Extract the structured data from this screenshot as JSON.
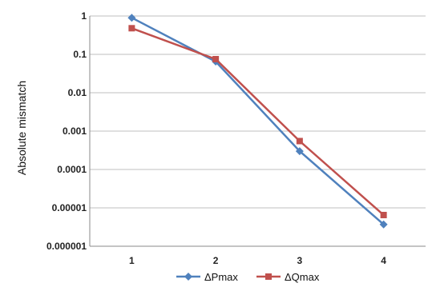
{
  "chart_data": {
    "type": "line",
    "title": "",
    "xlabel": "",
    "ylabel": "Absolute mismatch",
    "y_scale": "log",
    "ylim": [
      1e-06,
      1
    ],
    "y_ticks": [
      "1",
      "0.1",
      "0.01",
      "0.001",
      "0.0001",
      "0.00001",
      "0.000001"
    ],
    "y_tick_values": [
      1,
      0.1,
      0.01,
      0.001,
      0.0001,
      1e-05,
      1e-06
    ],
    "categories": [
      "1",
      "2",
      "3",
      "4"
    ],
    "grid": true,
    "legend_position": "bottom",
    "series": [
      {
        "name": "ΔPmax",
        "color": "#4f81bd",
        "marker": "diamond",
        "values": [
          0.9,
          0.065,
          0.0003,
          3.7e-06
        ]
      },
      {
        "name": "ΔQmax",
        "color": "#c0504d",
        "marker": "square",
        "values": [
          0.48,
          0.075,
          0.00055,
          6.5e-06
        ]
      }
    ]
  }
}
